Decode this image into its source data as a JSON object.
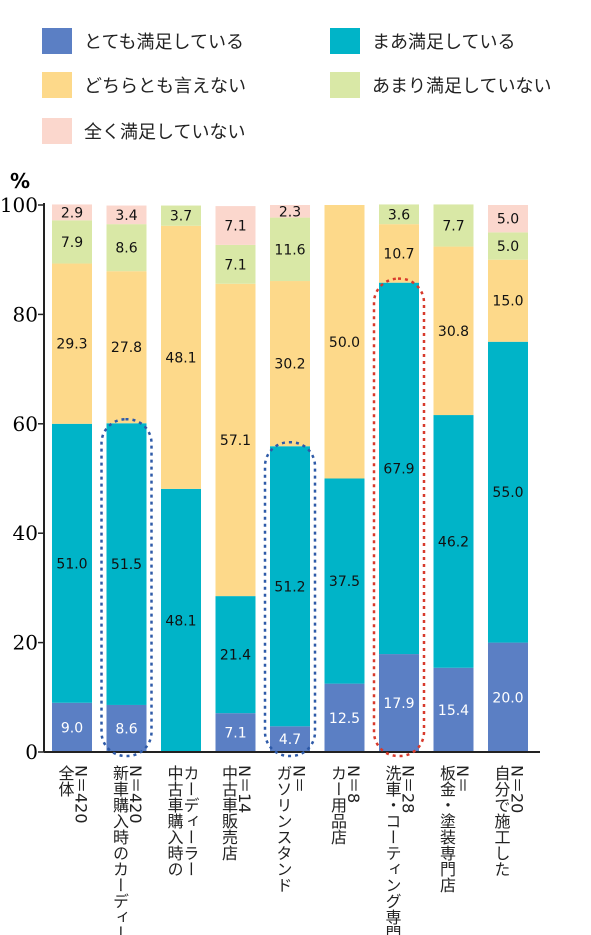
{
  "chart_data": {
    "type": "bar",
    "stacked": true,
    "ylabel": "%",
    "ylim": [
      0,
      100
    ],
    "yticks": [
      "0",
      "20",
      "40",
      "60",
      "80",
      "100"
    ],
    "categories": [
      [
        "全体",
        "N＝420"
      ],
      [
        "新車購入時のカーディーラ",
        "N＝420"
      ],
      [
        "中古車購入時の",
        "カーディーラー"
      ],
      [
        "中古車販売店",
        "N＝14"
      ],
      [
        "ガソリンスタンド",
        "N＝"
      ],
      [
        "カー用品店",
        "N＝8"
      ],
      [
        "洗車・コーティング専門",
        "N＝28"
      ],
      [
        "板金・塗装専門店",
        "N＝"
      ],
      [
        "自分で施工した",
        "N＝20"
      ]
    ],
    "series": [
      {
        "name": "とても満足している",
        "color": "#5b7fc4",
        "values": [
          9.0,
          8.6,
          0,
          7.1,
          4.7,
          12.5,
          17.9,
          15.4,
          20.0
        ]
      },
      {
        "name": "まあ満足している",
        "color": "#00b4c8",
        "values": [
          51.0,
          51.5,
          48.1,
          21.4,
          51.2,
          37.5,
          67.9,
          46.2,
          55.0
        ]
      },
      {
        "name": "どちらとも言えない",
        "color": "#fdd98a",
        "values": [
          29.3,
          27.8,
          48.1,
          57.1,
          30.2,
          50.0,
          10.7,
          30.8,
          15.0
        ]
      },
      {
        "name": "あまり満足していない",
        "color": "#d9e8a6",
        "values": [
          7.9,
          8.6,
          3.7,
          7.1,
          11.6,
          0,
          3.6,
          7.7,
          5.0
        ]
      },
      {
        "name": "全く満足していない",
        "color": "#fbd7cd",
        "values": [
          2.9,
          3.4,
          0,
          7.1,
          2.3,
          0,
          0,
          0,
          5.0
        ]
      }
    ],
    "value_labels": [
      [
        "9.0",
        "51.0",
        "29.3",
        "7.9",
        "2.9"
      ],
      [
        "8.6",
        "51.5",
        "27.8",
        "8.6",
        "3.4"
      ],
      [
        "",
        "48.1",
        "48.1",
        "3.7",
        ""
      ],
      [
        "7.1",
        "21.4",
        "57.1",
        "7.1",
        "7.1"
      ],
      [
        "4.7",
        "51.2",
        "30.2",
        "11.6",
        "2.3"
      ],
      [
        "12.5",
        "37.5",
        "50.0",
        "",
        ""
      ],
      [
        "17.9",
        "67.9",
        "10.7",
        "3.6",
        ""
      ],
      [
        "15.4",
        "46.2",
        "30.8",
        "7.7",
        ""
      ],
      [
        "20.0",
        "55.0",
        "15.0",
        "5.0",
        "5.0"
      ]
    ],
    "highlights": [
      {
        "category_index": 1,
        "color": "#2e5aa8",
        "from": 0,
        "to": 60.1
      },
      {
        "category_index": 4,
        "color": "#2e5aa8",
        "from": 0,
        "to": 55.9
      },
      {
        "category_index": 6,
        "color": "#d83a2c",
        "from": 0,
        "to": 85.8
      }
    ],
    "legend_position": "top"
  }
}
